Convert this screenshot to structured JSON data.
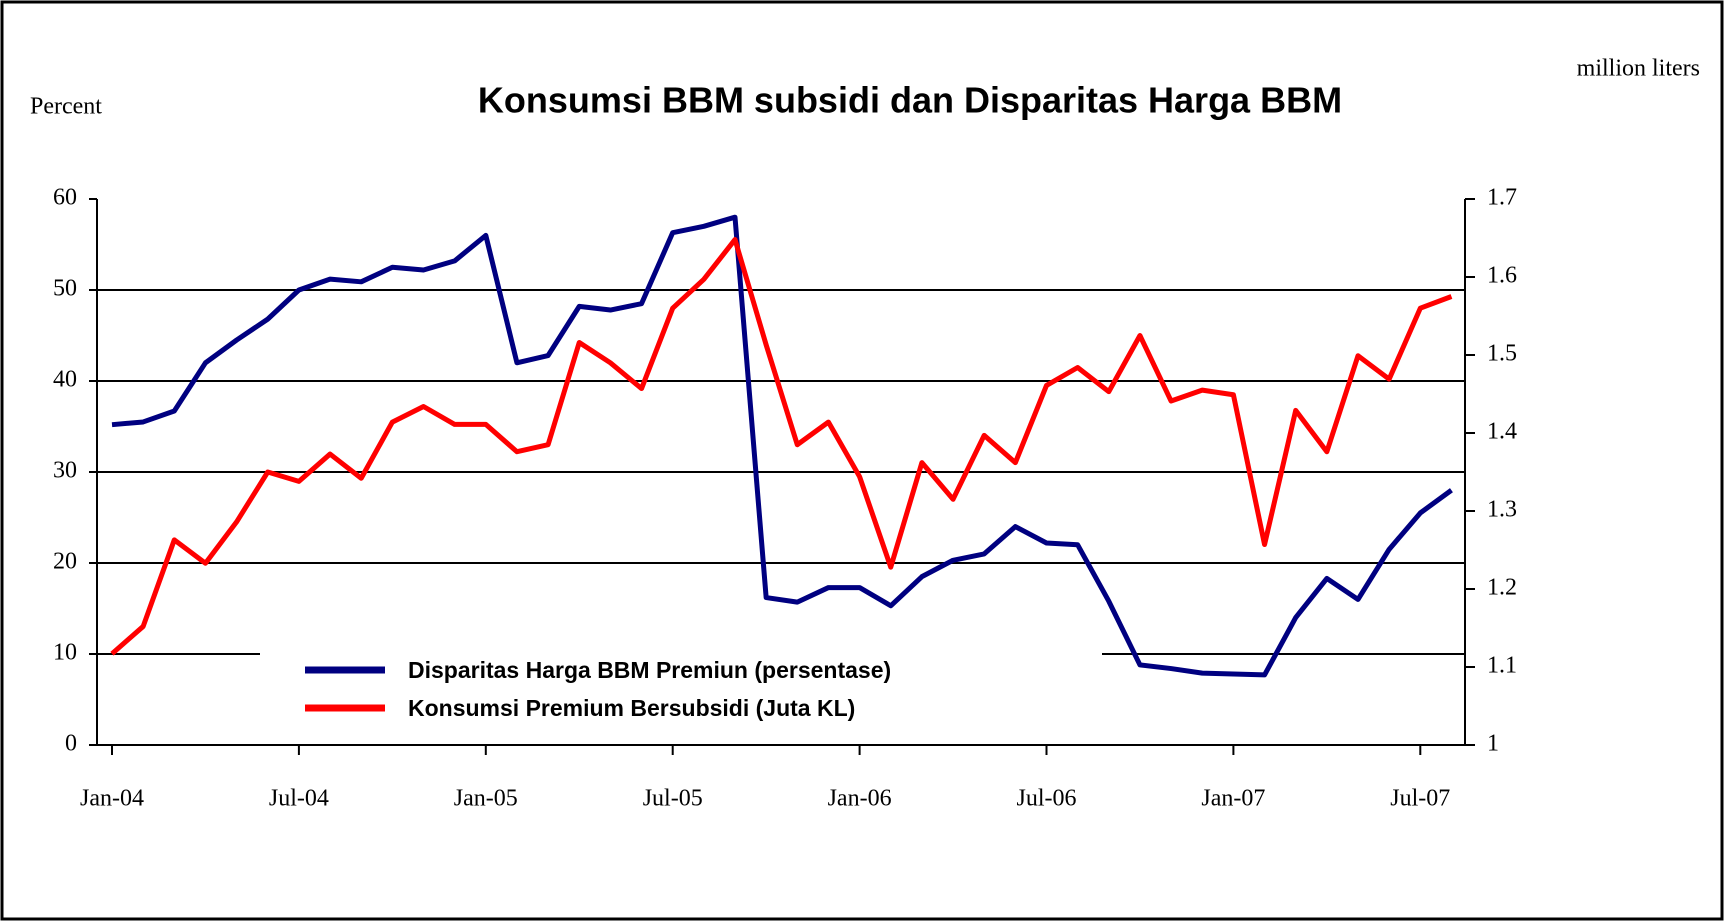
{
  "chart_data": {
    "type": "line",
    "title": "Konsumsi BBM subsidi dan Disparitas Harga BBM",
    "y_label": "Percent",
    "y2_label": "million liters",
    "categories": [
      "Jan-04",
      null,
      null,
      null,
      null,
      null,
      "Jul-04",
      null,
      null,
      null,
      null,
      null,
      "Jan-05",
      null,
      null,
      null,
      null,
      null,
      "Jul-05",
      null,
      null,
      null,
      null,
      null,
      "Jan-06",
      null,
      null,
      null,
      null,
      null,
      "Jul-06",
      null,
      null,
      null,
      null,
      null,
      "Jan-07",
      null,
      null,
      null,
      null,
      null,
      "Jul-07",
      null
    ],
    "series": [
      {
        "name": "Disparitas Harga BBM Premiun (persentase)",
        "color": "#000080",
        "values": [
          35.2,
          35.5,
          36.7,
          42,
          44.5,
          46.8,
          50,
          51.2,
          50.9,
          52.5,
          52.2,
          53.2,
          56,
          42,
          42.8,
          48.2,
          47.8,
          48.5,
          56.3,
          57,
          58,
          16.2,
          15.7,
          17.3,
          17.3,
          15.3,
          18.5,
          20.3,
          21,
          24,
          22.2,
          22,
          15.8,
          8.8,
          8.4,
          7.9,
          7.8,
          7.7,
          14,
          18.3,
          16,
          21.5,
          25.5,
          28
        ]
      },
      {
        "name": "Konsumsi Premium Bersubsidi (Juta KL)",
        "color": "#ff0000",
        "axis": "y2",
        "values": [
          1.117,
          1.152,
          1.263,
          1.233,
          1.286,
          1.35,
          1.338,
          1.373,
          1.342,
          1.414,
          1.434,
          1.411,
          1.411,
          1.376,
          1.385,
          1.516,
          1.49,
          1.457,
          1.56,
          1.597,
          1.648,
          1.513,
          1.385,
          1.414,
          1.344,
          1.228,
          1.362,
          1.315,
          1.397,
          1.362,
          1.461,
          1.484,
          1.453,
          1.525,
          1.441,
          1.455,
          1.449,
          1.257,
          1.429,
          1.376,
          1.499,
          1.469,
          1.56,
          1.575
        ]
      }
    ],
    "ylim": [
      0,
      60
    ],
    "yticks": [
      0,
      10,
      20,
      30,
      40,
      50,
      60
    ],
    "y2lim": [
      1,
      1.7
    ],
    "y2ticks": [
      1,
      1.1,
      1.2,
      1.3,
      1.4,
      1.5,
      1.6,
      1.7
    ],
    "grid": true
  }
}
